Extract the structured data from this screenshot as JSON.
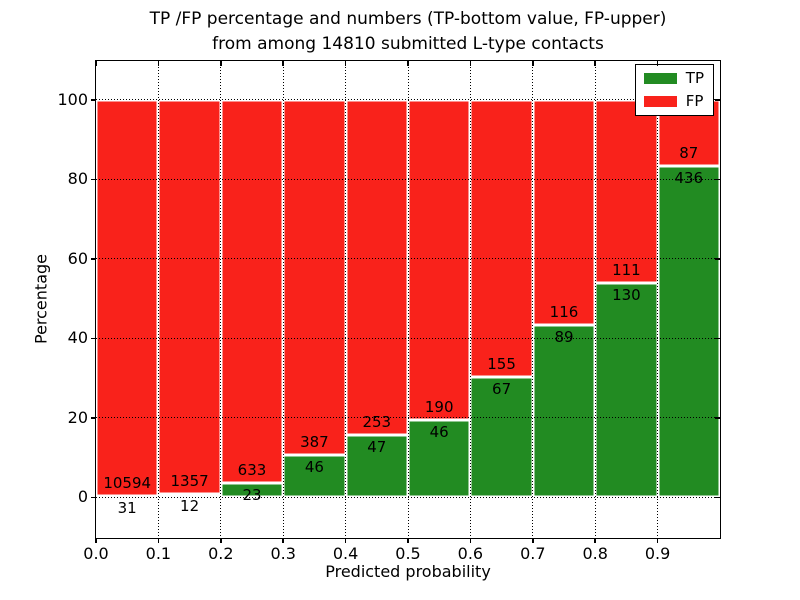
{
  "title": {
    "line1": "TP /FP percentage and numbers (TP-bottom value, FP-upper)",
    "line2": "from among 14810 submitted L-type contacts"
  },
  "axes": {
    "xlabel": "Predicted probability",
    "ylabel": "Percentage",
    "yticks": [
      0,
      20,
      40,
      60,
      80,
      100
    ],
    "xticks": [
      "0.0",
      "0.1",
      "0.2",
      "0.3",
      "0.4",
      "0.5",
      "0.6",
      "0.7",
      "0.8",
      "0.9"
    ]
  },
  "legend": {
    "items": [
      {
        "label": "TP",
        "color": "#228b22"
      },
      {
        "label": "FP",
        "color": "#f9221b"
      }
    ]
  },
  "colors": {
    "tp_green": "#228b22",
    "fp_red": "#f9221b",
    "grid": "#000000",
    "background": "#ffffff"
  },
  "chart_data": {
    "type": "bar",
    "stacked": true,
    "normalized_to_percent": true,
    "bin_starts": [
      0.0,
      0.1,
      0.2,
      0.3,
      0.4,
      0.5,
      0.6,
      0.7,
      0.8,
      0.9
    ],
    "bin_width": 0.1,
    "series": [
      {
        "name": "TP",
        "color": "#228b22",
        "counts": [
          31,
          12,
          23,
          46,
          47,
          46,
          67,
          89,
          130,
          436
        ]
      },
      {
        "name": "FP",
        "color": "#f9221b",
        "counts": [
          10594,
          1357,
          633,
          387,
          253,
          190,
          155,
          116,
          111,
          87
        ]
      }
    ],
    "tp_percent_of_bin": [
      0.29,
      0.88,
      3.51,
      10.62,
      15.67,
      19.49,
      30.18,
      43.41,
      53.94,
      83.37
    ],
    "total_contacts": 14810,
    "title": "TP /FP percentage and numbers (TP-bottom value, FP-upper) from among 14810 submitted L-type contacts",
    "xlabel": "Predicted probability",
    "ylabel": "Percentage",
    "xlim": [
      0.0,
      1.0
    ],
    "ylim": [
      -10.3,
      109.8
    ],
    "grid": "dotted, both axes",
    "legend_position": "upper right"
  }
}
